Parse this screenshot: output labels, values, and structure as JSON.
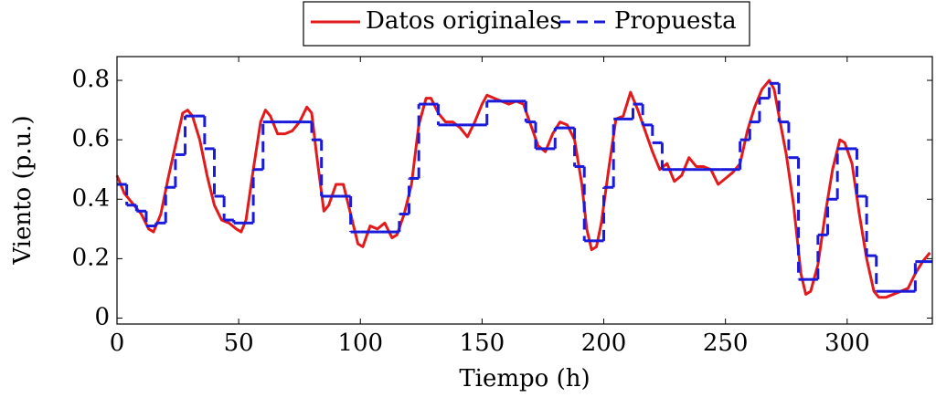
{
  "chart_data": {
    "type": "line",
    "x_label": "Tiempo (h)",
    "y_label": "Viento (p.u.)",
    "xlim": [
      0,
      335
    ],
    "ylim": [
      -0.02,
      0.88
    ],
    "xticks": [
      0,
      50,
      100,
      150,
      200,
      250,
      300
    ],
    "yticks": [
      0,
      0.2,
      0.4,
      0.6,
      0.8
    ],
    "legend": "top",
    "series": [
      {
        "name": "Datos originales",
        "color": "#e31a1c",
        "style": "solid",
        "x": [
          0,
          3,
          6,
          10,
          13,
          15,
          18,
          21,
          24,
          27,
          29,
          31,
          34,
          37,
          40,
          43,
          46,
          49,
          51,
          53,
          56,
          59,
          61,
          63,
          66,
          69,
          72,
          75,
          78,
          80,
          82,
          85,
          87,
          90,
          93,
          96,
          99,
          101,
          104,
          107,
          110,
          113,
          115,
          118,
          121,
          124,
          127,
          129,
          132,
          135,
          138,
          141,
          144,
          147,
          150,
          152,
          155,
          158,
          161,
          164,
          167,
          170,
          173,
          176,
          179,
          182,
          185,
          188,
          191,
          193,
          195,
          197,
          199,
          202,
          205,
          208,
          211,
          214,
          217,
          220,
          223,
          226,
          229,
          232,
          235,
          238,
          241,
          244,
          247,
          250,
          253,
          256,
          259,
          262,
          265,
          268,
          270,
          272,
          275,
          278,
          281,
          283,
          285,
          288,
          291,
          294,
          297,
          299,
          302,
          305,
          308,
          311,
          313,
          316,
          319,
          322,
          325,
          328,
          331,
          334
        ],
        "values": [
          0.48,
          0.42,
          0.39,
          0.35,
          0.3,
          0.29,
          0.35,
          0.47,
          0.58,
          0.69,
          0.7,
          0.68,
          0.6,
          0.48,
          0.38,
          0.33,
          0.32,
          0.3,
          0.29,
          0.33,
          0.5,
          0.66,
          0.7,
          0.68,
          0.62,
          0.62,
          0.63,
          0.66,
          0.71,
          0.69,
          0.55,
          0.36,
          0.38,
          0.45,
          0.45,
          0.35,
          0.25,
          0.24,
          0.31,
          0.3,
          0.32,
          0.27,
          0.28,
          0.35,
          0.45,
          0.65,
          0.74,
          0.74,
          0.69,
          0.66,
          0.66,
          0.64,
          0.61,
          0.66,
          0.72,
          0.75,
          0.74,
          0.73,
          0.72,
          0.73,
          0.72,
          0.65,
          0.58,
          0.56,
          0.62,
          0.66,
          0.65,
          0.6,
          0.45,
          0.3,
          0.23,
          0.24,
          0.32,
          0.5,
          0.67,
          0.68,
          0.76,
          0.7,
          0.63,
          0.56,
          0.5,
          0.52,
          0.46,
          0.48,
          0.54,
          0.51,
          0.51,
          0.5,
          0.45,
          0.47,
          0.49,
          0.52,
          0.63,
          0.71,
          0.77,
          0.8,
          0.77,
          0.68,
          0.55,
          0.38,
          0.15,
          0.08,
          0.09,
          0.18,
          0.35,
          0.5,
          0.6,
          0.59,
          0.52,
          0.35,
          0.2,
          0.09,
          0.07,
          0.07,
          0.08,
          0.09,
          0.1,
          0.15,
          0.19,
          0.22
        ]
      },
      {
        "name": "Propuesta",
        "color": "#1a1adb",
        "style": "dashed",
        "step": "after",
        "x": [
          0,
          4,
          8,
          12,
          16,
          20,
          24,
          28,
          32,
          36,
          40,
          44,
          48,
          52,
          56,
          60,
          64,
          68,
          72,
          76,
          80,
          84,
          88,
          92,
          96,
          100,
          104,
          108,
          112,
          116,
          120,
          124,
          128,
          132,
          136,
          140,
          144,
          148,
          152,
          156,
          160,
          164,
          168,
          172,
          176,
          180,
          184,
          188,
          192,
          196,
          200,
          204,
          208,
          212,
          216,
          220,
          224,
          228,
          232,
          236,
          240,
          244,
          248,
          252,
          256,
          260,
          264,
          268,
          272,
          276,
          280,
          284,
          288,
          292,
          296,
          300,
          304,
          308,
          312,
          316,
          320,
          324,
          328,
          332
        ],
        "values": [
          0.45,
          0.38,
          0.36,
          0.31,
          0.32,
          0.44,
          0.55,
          0.68,
          0.68,
          0.57,
          0.41,
          0.33,
          0.32,
          0.32,
          0.5,
          0.66,
          0.66,
          0.66,
          0.66,
          0.66,
          0.6,
          0.41,
          0.41,
          0.41,
          0.29,
          0.29,
          0.29,
          0.29,
          0.29,
          0.35,
          0.47,
          0.72,
          0.72,
          0.65,
          0.65,
          0.65,
          0.65,
          0.65,
          0.73,
          0.73,
          0.73,
          0.73,
          0.66,
          0.57,
          0.57,
          0.64,
          0.64,
          0.51,
          0.26,
          0.26,
          0.44,
          0.67,
          0.67,
          0.72,
          0.65,
          0.59,
          0.5,
          0.5,
          0.5,
          0.5,
          0.5,
          0.5,
          0.5,
          0.5,
          0.6,
          0.66,
          0.74,
          0.79,
          0.66,
          0.54,
          0.13,
          0.13,
          0.28,
          0.4,
          0.57,
          0.57,
          0.41,
          0.21,
          0.09,
          0.09,
          0.09,
          0.09,
          0.19,
          0.19
        ]
      }
    ]
  }
}
